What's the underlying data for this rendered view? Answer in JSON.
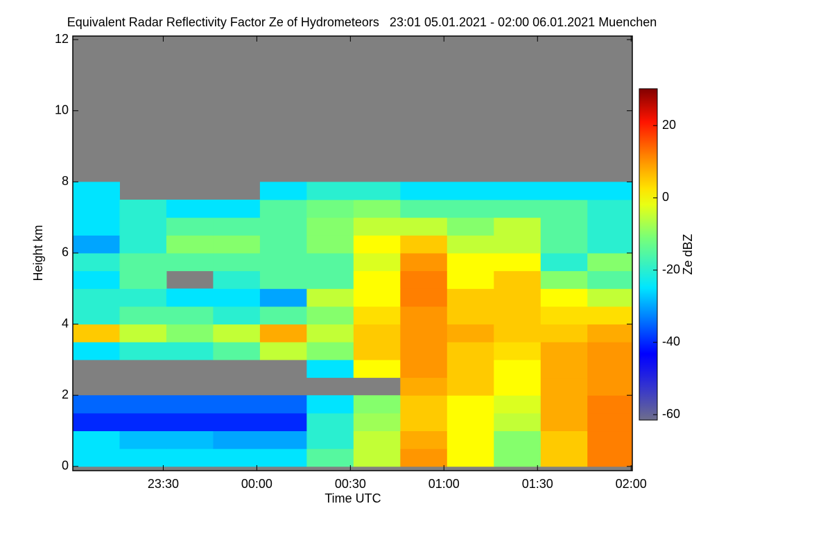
{
  "chart_data": {
    "type": "heatmap",
    "title": "Equivalent Radar Reflectivity Factor Ze of Hydrometeors   23:01 05.01.2021 - 02:00 06.01.2021 Muenchen",
    "xlabel": "Time UTC",
    "ylabel": "Height km",
    "zlabel": "Ze dBZ",
    "xlim": [
      1,
      180.4
    ],
    "xticks": [
      {
        "value": 30,
        "label": "23:30"
      },
      {
        "value": 60,
        "label": "00:00"
      },
      {
        "value": 90,
        "label": "00:30"
      },
      {
        "value": 120,
        "label": "01:00"
      },
      {
        "value": 150,
        "label": "01:30"
      },
      {
        "value": 180,
        "label": "02:00"
      }
    ],
    "ylim": [
      -0.12,
      12.1
    ],
    "yticks": [
      0,
      2,
      4,
      6,
      8,
      10,
      12
    ],
    "zlim": [
      -61.5,
      30.2
    ],
    "zticks": [
      -60,
      -40,
      -20,
      0,
      20
    ],
    "x_bins": [
      1,
      16,
      31,
      46,
      61,
      76,
      91,
      106,
      121,
      136,
      151,
      166,
      181
    ],
    "y_bins": [
      0,
      0.5,
      1,
      1.5,
      2,
      2.5,
      3,
      3.5,
      4,
      4.5,
      5,
      5.5,
      6,
      6.5,
      7,
      7.5,
      8
    ],
    "z": [
      [
        -25,
        -25,
        -25,
        -25,
        -25,
        -15,
        -5,
        10,
        0,
        -10,
        5,
        12
      ],
      [
        -25,
        -28,
        -28,
        -30,
        -30,
        -20,
        -5,
        8,
        0,
        -10,
        5,
        12
      ],
      [
        -40,
        -40,
        -40,
        -40,
        -40,
        -20,
        -8,
        5,
        0,
        -5,
        8,
        12
      ],
      [
        -35,
        -35,
        -35,
        -35,
        -35,
        -25,
        -10,
        5,
        0,
        -3,
        8,
        12
      ],
      [
        null,
        null,
        null,
        null,
        null,
        null,
        null,
        8,
        5,
        0,
        8,
        10
      ],
      [
        null,
        null,
        null,
        null,
        null,
        -25,
        0,
        10,
        5,
        0,
        8,
        10
      ],
      [
        -25,
        -20,
        -20,
        -15,
        -5,
        -10,
        5,
        10,
        5,
        3,
        8,
        10
      ],
      [
        5,
        -5,
        -10,
        -5,
        8,
        -5,
        5,
        10,
        8,
        5,
        5,
        8
      ],
      [
        -20,
        -15,
        -15,
        -20,
        -15,
        -10,
        3,
        10,
        5,
        5,
        3,
        3
      ],
      [
        -20,
        -20,
        -25,
        -25,
        -30,
        -5,
        0,
        12,
        5,
        5,
        0,
        -5
      ],
      [
        -25,
        -15,
        null,
        -20,
        -15,
        -15,
        0,
        12,
        0,
        5,
        -10,
        -15
      ],
      [
        -20,
        -15,
        -15,
        -15,
        -15,
        -15,
        -3,
        10,
        0,
        0,
        -20,
        -10
      ],
      [
        -30,
        -20,
        -10,
        -10,
        -15,
        -10,
        0,
        5,
        -5,
        -5,
        -15,
        -20
      ],
      [
        -25,
        -20,
        -15,
        -15,
        -15,
        -10,
        -5,
        -5,
        -10,
        -5,
        -15,
        -20
      ],
      [
        -25,
        -20,
        -25,
        -25,
        -15,
        -12,
        -10,
        -15,
        -15,
        -15,
        -15,
        -20
      ],
      [
        -25,
        null,
        null,
        null,
        -25,
        -20,
        -20,
        -25,
        -25,
        -25,
        -25,
        -25
      ]
    ]
  }
}
